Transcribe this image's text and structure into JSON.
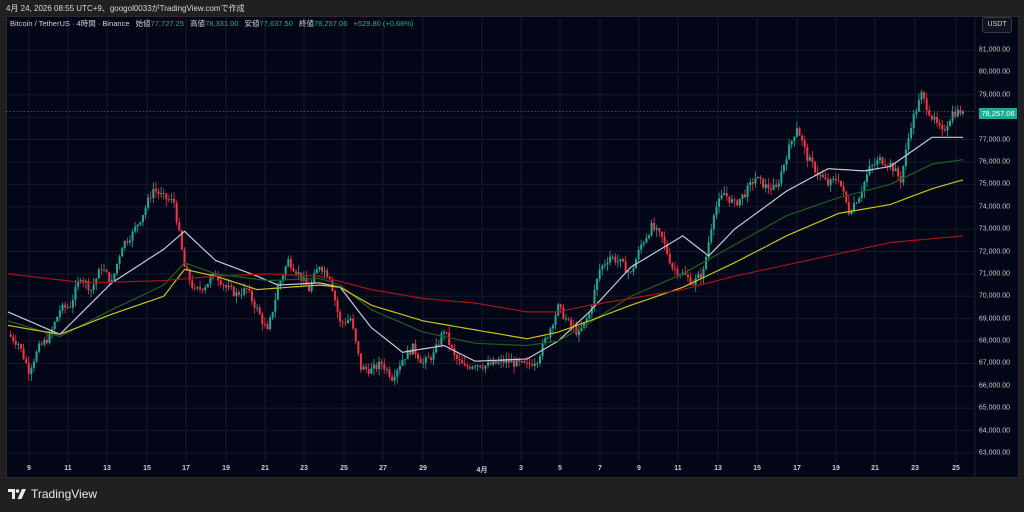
{
  "caption": "4月 24, 2026 08:55 UTC+9、googol0033がTradingView.comで作成",
  "legend": {
    "symbol": "Bitcoin / TetherUS · 4時間 · Binance",
    "open_label": "始値",
    "open": "77,727.25",
    "high_label": "高値",
    "high": "78,331.00",
    "low_label": "安値",
    "low": "77,637.50",
    "close_label": "終値",
    "close": "78,257.06",
    "change": "+529.80 (+0.68%)"
  },
  "currency_button": "USDT",
  "last_price_tag": "78,257.06",
  "footer": {
    "brand": "TradingView",
    "logo_icon": "tradingview-logo-icon"
  },
  "colors": {
    "background": "#030616",
    "up": "#22ab94",
    "down": "#f23645",
    "ma_fast": "#c9c9d6",
    "ma_mid": "#1f5e1f",
    "ma_slow": "#c8c21e",
    "ma_long": "#a3161c"
  },
  "chart_data": {
    "type": "candlestick",
    "title": "Bitcoin / TetherUS · 4時間 · Binance",
    "ylabel": "USDT",
    "ylim": [
      62500,
      81800
    ],
    "yticks": [
      "81,000.00",
      "80,000.00",
      "79,000.00",
      "78,000.00",
      "77,000.00",
      "76,000.00",
      "75,000.00",
      "74,000.00",
      "73,000.00",
      "72,000.00",
      "71,000.00",
      "70,000.00",
      "69,000.00",
      "68,000.00",
      "67,000.00",
      "66,000.00",
      "65,000.00",
      "64,000.00",
      "63,000.00"
    ],
    "xticks": [
      "9",
      "11",
      "13",
      "15",
      "17",
      "19",
      "21",
      "23",
      "25",
      "27",
      "29",
      "4月",
      "3",
      "5",
      "7",
      "9",
      "11",
      "13",
      "15",
      "17",
      "19",
      "21",
      "23",
      "25"
    ],
    "grid": true,
    "last_price": 78257.06,
    "close_path": [
      [
        0,
        68300
      ],
      [
        4,
        67900
      ],
      [
        8,
        66700
      ],
      [
        12,
        67700
      ],
      [
        16,
        68200
      ],
      [
        20,
        69400
      ],
      [
        24,
        69600
      ],
      [
        28,
        70900
      ],
      [
        32,
        70300
      ],
      [
        36,
        71300
      ],
      [
        40,
        70600
      ],
      [
        44,
        72300
      ],
      [
        48,
        72800
      ],
      [
        52,
        73700
      ],
      [
        56,
        74800
      ],
      [
        60,
        74400
      ],
      [
        64,
        74200
      ],
      [
        68,
        71300
      ],
      [
        72,
        70200
      ],
      [
        76,
        70500
      ],
      [
        80,
        71000
      ],
      [
        84,
        70400
      ],
      [
        88,
        70100
      ],
      [
        92,
        70300
      ],
      [
        96,
        69400
      ],
      [
        100,
        68400
      ],
      [
        104,
        70400
      ],
      [
        108,
        71600
      ],
      [
        112,
        71000
      ],
      [
        116,
        70300
      ],
      [
        120,
        71400
      ],
      [
        124,
        70900
      ],
      [
        128,
        68800
      ],
      [
        132,
        69000
      ],
      [
        136,
        66800
      ],
      [
        140,
        66700
      ],
      [
        144,
        67000
      ],
      [
        148,
        66400
      ],
      [
        152,
        67200
      ],
      [
        156,
        67700
      ],
      [
        160,
        67000
      ],
      [
        164,
        67400
      ],
      [
        168,
        68500
      ],
      [
        172,
        67300
      ],
      [
        176,
        66800
      ],
      [
        180,
        67000
      ],
      [
        184,
        66900
      ],
      [
        188,
        67000
      ],
      [
        192,
        67100
      ],
      [
        196,
        67000
      ],
      [
        200,
        66900
      ],
      [
        204,
        67200
      ],
      [
        208,
        68300
      ],
      [
        212,
        69500
      ],
      [
        216,
        68800
      ],
      [
        220,
        68300
      ],
      [
        224,
        69200
      ],
      [
        228,
        71200
      ],
      [
        232,
        71800
      ],
      [
        236,
        71500
      ],
      [
        240,
        71000
      ],
      [
        244,
        72300
      ],
      [
        248,
        73100
      ],
      [
        252,
        72600
      ],
      [
        256,
        71300
      ],
      [
        260,
        71000
      ],
      [
        264,
        70600
      ],
      [
        268,
        71100
      ],
      [
        272,
        73800
      ],
      [
        276,
        74600
      ],
      [
        280,
        74100
      ],
      [
        284,
        74600
      ],
      [
        288,
        75300
      ],
      [
        292,
        74900
      ],
      [
        296,
        74800
      ],
      [
        300,
        76300
      ],
      [
        304,
        77600
      ],
      [
        308,
        76200
      ],
      [
        312,
        75500
      ],
      [
        316,
        75000
      ],
      [
        320,
        75300
      ],
      [
        324,
        73800
      ],
      [
        328,
        74500
      ],
      [
        332,
        75700
      ],
      [
        336,
        76100
      ],
      [
        340,
        75900
      ],
      [
        344,
        75200
      ],
      [
        348,
        77700
      ],
      [
        352,
        79000
      ],
      [
        356,
        78000
      ],
      [
        360,
        77300
      ],
      [
        364,
        78200
      ],
      [
        368,
        78257
      ]
    ],
    "moving_averages": [
      {
        "name": "MA fast (white)",
        "color": "#c9c9d6",
        "points": [
          [
            0,
            69300
          ],
          [
            20,
            68300
          ],
          [
            40,
            70600
          ],
          [
            60,
            72100
          ],
          [
            68,
            72900
          ],
          [
            80,
            71600
          ],
          [
            96,
            70900
          ],
          [
            104,
            70500
          ],
          [
            120,
            70600
          ],
          [
            128,
            70400
          ],
          [
            140,
            68600
          ],
          [
            152,
            67500
          ],
          [
            168,
            67800
          ],
          [
            180,
            67100
          ],
          [
            200,
            67200
          ],
          [
            212,
            68000
          ],
          [
            224,
            69300
          ],
          [
            240,
            71300
          ],
          [
            260,
            72700
          ],
          [
            270,
            71800
          ],
          [
            280,
            73000
          ],
          [
            300,
            74700
          ],
          [
            316,
            75700
          ],
          [
            330,
            75600
          ],
          [
            340,
            75800
          ],
          [
            356,
            77100
          ],
          [
            368,
            77100
          ]
        ]
      },
      {
        "name": "MA mid (green)",
        "color": "#1f5e1f",
        "points": [
          [
            0,
            68900
          ],
          [
            20,
            68200
          ],
          [
            40,
            69400
          ],
          [
            60,
            70500
          ],
          [
            68,
            71500
          ],
          [
            80,
            71000
          ],
          [
            100,
            70700
          ],
          [
            120,
            70800
          ],
          [
            128,
            70500
          ],
          [
            140,
            69400
          ],
          [
            160,
            68400
          ],
          [
            180,
            67900
          ],
          [
            200,
            67800
          ],
          [
            212,
            68000
          ],
          [
            224,
            68800
          ],
          [
            240,
            70000
          ],
          [
            260,
            71000
          ],
          [
            280,
            72300
          ],
          [
            300,
            73600
          ],
          [
            320,
            74400
          ],
          [
            340,
            75000
          ],
          [
            356,
            75900
          ],
          [
            368,
            76100
          ]
        ]
      },
      {
        "name": "MA slow (yellow)",
        "color": "#c8c21e",
        "points": [
          [
            0,
            68700
          ],
          [
            20,
            68300
          ],
          [
            40,
            69200
          ],
          [
            60,
            70000
          ],
          [
            68,
            71200
          ],
          [
            80,
            70900
          ],
          [
            96,
            70300
          ],
          [
            120,
            70500
          ],
          [
            128,
            70400
          ],
          [
            140,
            69600
          ],
          [
            160,
            68900
          ],
          [
            180,
            68500
          ],
          [
            200,
            68100
          ],
          [
            212,
            68400
          ],
          [
            224,
            68900
          ],
          [
            240,
            69600
          ],
          [
            260,
            70400
          ],
          [
            280,
            71500
          ],
          [
            300,
            72700
          ],
          [
            320,
            73700
          ],
          [
            340,
            74100
          ],
          [
            356,
            74800
          ],
          [
            368,
            75200
          ]
        ]
      },
      {
        "name": "MA long (red)",
        "color": "#a3161c",
        "points": [
          [
            0,
            71000
          ],
          [
            30,
            70600
          ],
          [
            60,
            70700
          ],
          [
            80,
            70900
          ],
          [
            100,
            71000
          ],
          [
            120,
            70900
          ],
          [
            140,
            70300
          ],
          [
            160,
            69900
          ],
          [
            180,
            69700
          ],
          [
            200,
            69300
          ],
          [
            212,
            69300
          ],
          [
            224,
            69600
          ],
          [
            240,
            69900
          ],
          [
            260,
            70300
          ],
          [
            280,
            70900
          ],
          [
            300,
            71400
          ],
          [
            320,
            71900
          ],
          [
            340,
            72400
          ],
          [
            368,
            72700
          ]
        ]
      }
    ]
  }
}
